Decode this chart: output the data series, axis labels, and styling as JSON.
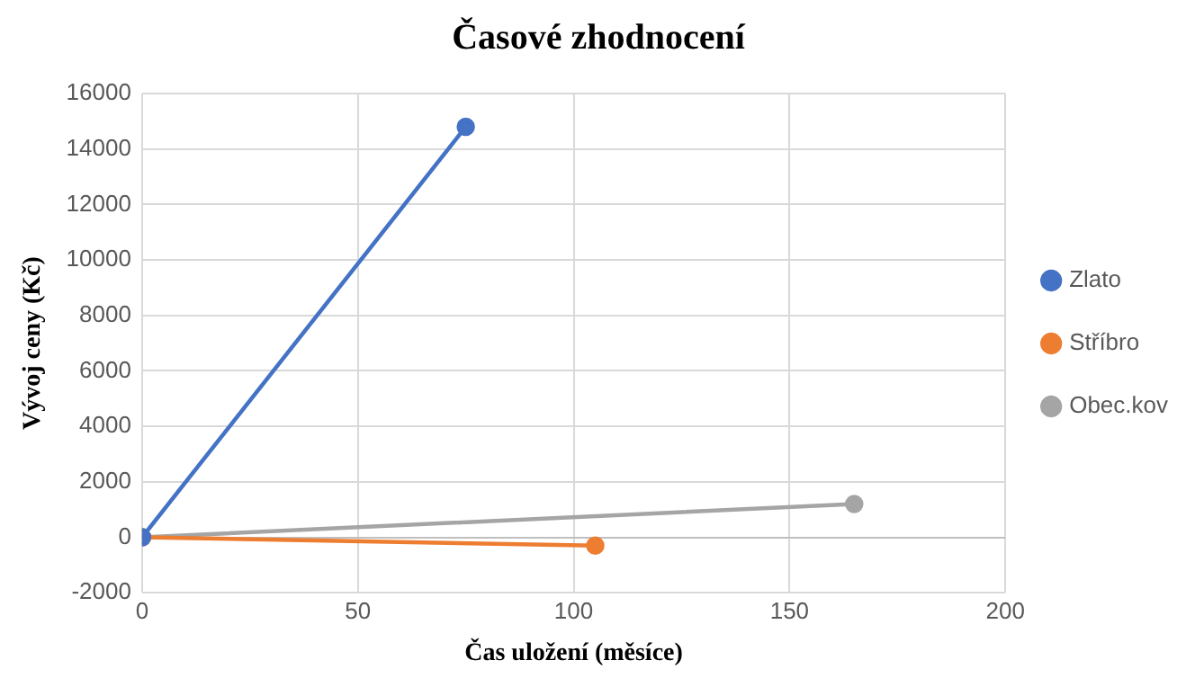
{
  "chart_data": {
    "type": "line",
    "title": "Časové zhodnocení",
    "xlabel": "Čas uložení (měsíce)",
    "ylabel": "Vývoj ceny (Kč)",
    "series": [
      {
        "name": "Zlato",
        "color": "#4472c4",
        "x": [
          0,
          75
        ],
        "values": [
          0,
          14800
        ]
      },
      {
        "name": "Stříbro",
        "color": "#ed7d31",
        "x": [
          0,
          105
        ],
        "values": [
          0,
          -300
        ]
      },
      {
        "name": "Obec.kov",
        "color": "#a5a5a5",
        "x": [
          0,
          165
        ],
        "values": [
          0,
          1200
        ]
      }
    ],
    "xlim": [
      0,
      200
    ],
    "xticks": [
      0,
      50,
      100,
      150,
      200
    ],
    "ylim": [
      -2000,
      16000
    ],
    "yticks": [
      -2000,
      0,
      2000,
      4000,
      6000,
      8000,
      10000,
      12000,
      14000,
      16000
    ],
    "grid": true,
    "legend": "right",
    "marker": "circle",
    "line_style": "solid"
  }
}
